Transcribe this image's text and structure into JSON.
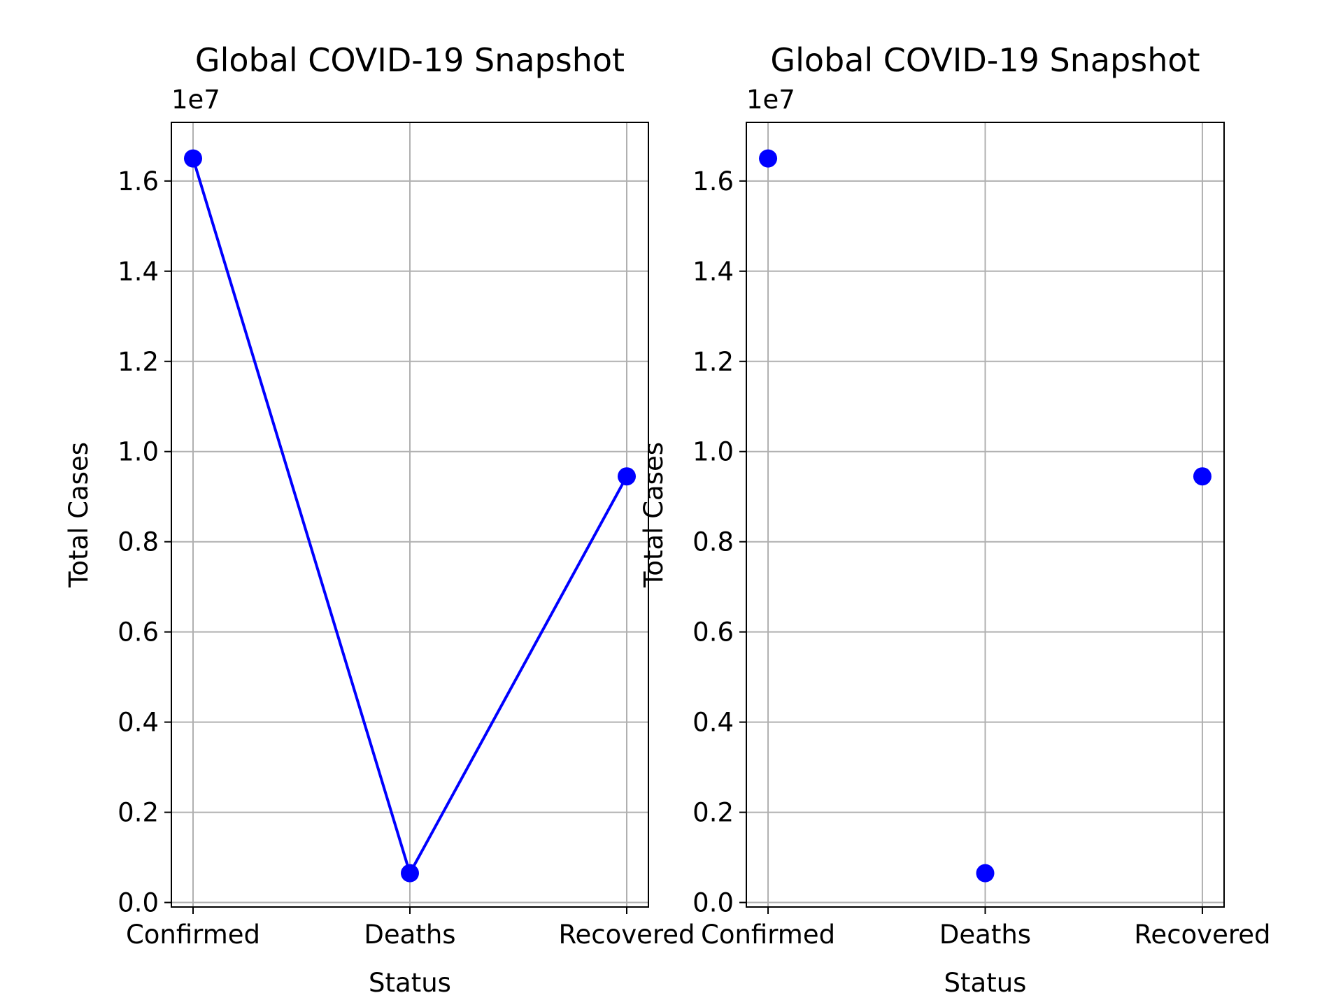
{
  "chart_data": [
    {
      "type": "line",
      "title": "Global COVID-19 Snapshot",
      "xlabel": "Status",
      "ylabel": "Total Cases",
      "offset_text": "1e7",
      "categories": [
        "Confirmed",
        "Deaths",
        "Recovered"
      ],
      "values": [
        16500000,
        650000,
        9450000
      ],
      "ylim": [
        -100000,
        17300000
      ],
      "yticks": [
        0,
        2000000,
        4000000,
        6000000,
        8000000,
        10000000,
        12000000,
        14000000,
        16000000
      ],
      "ytick_labels": [
        "0.0",
        "0.2",
        "0.4",
        "0.6",
        "0.8",
        "1.0",
        "1.2",
        "1.4",
        "1.6"
      ],
      "grid": true,
      "marker": "circle",
      "color": "#0000ff"
    },
    {
      "type": "scatter",
      "title": "Global COVID-19 Snapshot",
      "xlabel": "Status",
      "ylabel": "Total Cases",
      "offset_text": "1e7",
      "categories": [
        "Confirmed",
        "Deaths",
        "Recovered"
      ],
      "values": [
        16500000,
        650000,
        9450000
      ],
      "ylim": [
        -100000,
        17300000
      ],
      "yticks": [
        0,
        2000000,
        4000000,
        6000000,
        8000000,
        10000000,
        12000000,
        14000000,
        16000000
      ],
      "ytick_labels": [
        "0.0",
        "0.2",
        "0.4",
        "0.6",
        "0.8",
        "1.0",
        "1.2",
        "1.4",
        "1.6"
      ],
      "grid": true,
      "marker": "circle",
      "color": "#0000ff"
    }
  ]
}
